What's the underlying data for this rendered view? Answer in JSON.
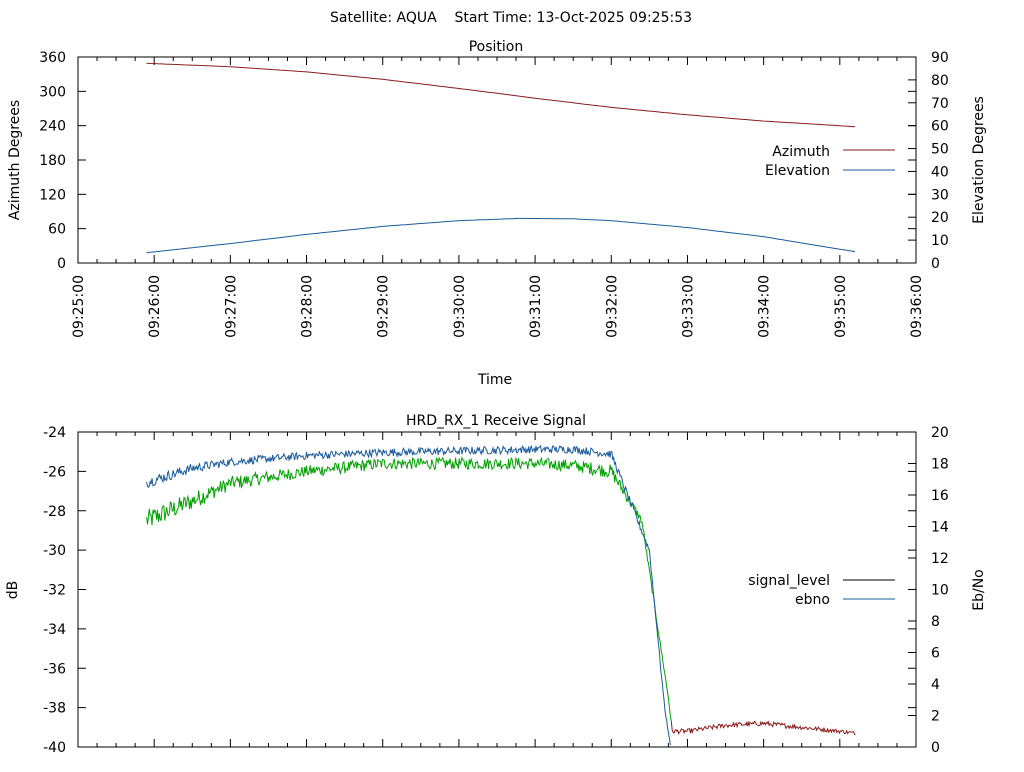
{
  "suptitle": "Satellite: AQUA    Start Time: 13-Oct-2025 09:25:53",
  "chart_data": [
    {
      "type": "line",
      "title": "Position",
      "xlabel": "Time",
      "ylabel": "Azimuth Degrees",
      "y2label": "Elevation Degrees",
      "ylim": [
        0,
        360
      ],
      "y2lim": [
        0,
        90
      ],
      "yticks": [
        "0",
        "60",
        "120",
        "180",
        "240",
        "300",
        "360"
      ],
      "y2ticks": [
        "0",
        "10",
        "20",
        "30",
        "40",
        "50",
        "60",
        "70",
        "80",
        "90"
      ],
      "xlim_minutes": [
        0,
        11
      ],
      "xticks": [
        "09:25:00",
        "09:26:00",
        "09:27:00",
        "09:28:00",
        "09:29:00",
        "09:30:00",
        "09:31:00",
        "09:32:00",
        "09:33:00",
        "09:34:00",
        "09:35:00",
        "09:36:00"
      ],
      "legend_position": "right",
      "series": [
        {
          "name": "Azimuth",
          "axis": "left",
          "color": "#8b1a1a",
          "x_minutes": [
            0.9,
            2,
            3,
            4,
            5,
            6,
            7,
            8,
            9,
            10,
            10.2
          ],
          "values": [
            349,
            343,
            334,
            321,
            305,
            288,
            272,
            259,
            248,
            240,
            238
          ]
        },
        {
          "name": "Elevation",
          "axis": "right",
          "color": "#1a5a9a",
          "x_minutes": [
            0.9,
            2,
            3,
            4,
            5,
            5.8,
            6.5,
            7,
            8,
            9,
            10,
            10.2
          ],
          "values": [
            4.5,
            8.5,
            12.5,
            16,
            18.5,
            19.5,
            19.3,
            18.5,
            15.5,
            11.5,
            6,
            5
          ]
        }
      ]
    },
    {
      "type": "line",
      "title": "HRD_RX_1 Receive Signal",
      "xlabel": "",
      "ylabel": "dB",
      "y2label": "Eb/No",
      "ylim": [
        -40,
        -24
      ],
      "y2lim": [
        0,
        20
      ],
      "yticks": [
        "-40",
        "-38",
        "-36",
        "-34",
        "-32",
        "-30",
        "-28",
        "-26",
        "-24"
      ],
      "y2ticks": [
        "0",
        "2",
        "4",
        "6",
        "8",
        "10",
        "12",
        "14",
        "16",
        "18",
        "20"
      ],
      "xlim_minutes": [
        0,
        11
      ],
      "legend_position": "right",
      "series": [
        {
          "name": "signal_level",
          "axis": "left",
          "color": "#8b1a1a",
          "x_minutes": [
            0.9,
            1.5,
            2,
            3,
            4,
            5,
            6,
            6.5,
            7.0,
            7.4,
            7.75,
            7.8,
            8,
            8.5,
            9,
            9.5,
            10,
            10.2
          ],
          "values": [
            -28.5,
            -27.5,
            -26.6,
            -26.0,
            -25.6,
            -25.6,
            -25.6,
            -25.7,
            -26.0,
            -28.5,
            -37.5,
            -39.2,
            -39.2,
            -38.9,
            -38.8,
            -39.0,
            -39.2,
            -39.3
          ],
          "noise": [
            0.55,
            0.45,
            0.35,
            0.3,
            0.3,
            0.3,
            0.3,
            0.3,
            0.35,
            0.2,
            0.1,
            0.12,
            0.12,
            0.12,
            0.12,
            0.12,
            0.1,
            0.1
          ]
        },
        {
          "name": "ebno",
          "axis": "right",
          "color": "#1a5a9a",
          "x_minutes": [
            0.9,
            1.5,
            2,
            3,
            4,
            5,
            6,
            6.5,
            7.0,
            7.5,
            7.7,
            7.78
          ],
          "values": [
            16.8,
            17.7,
            18.1,
            18.5,
            18.7,
            18.8,
            18.9,
            18.9,
            18.6,
            12.5,
            2.5,
            0
          ],
          "noise": [
            0.35,
            0.3,
            0.25,
            0.25,
            0.25,
            0.25,
            0.25,
            0.25,
            0.25,
            0.2,
            0.1,
            0
          ]
        }
      ]
    }
  ]
}
